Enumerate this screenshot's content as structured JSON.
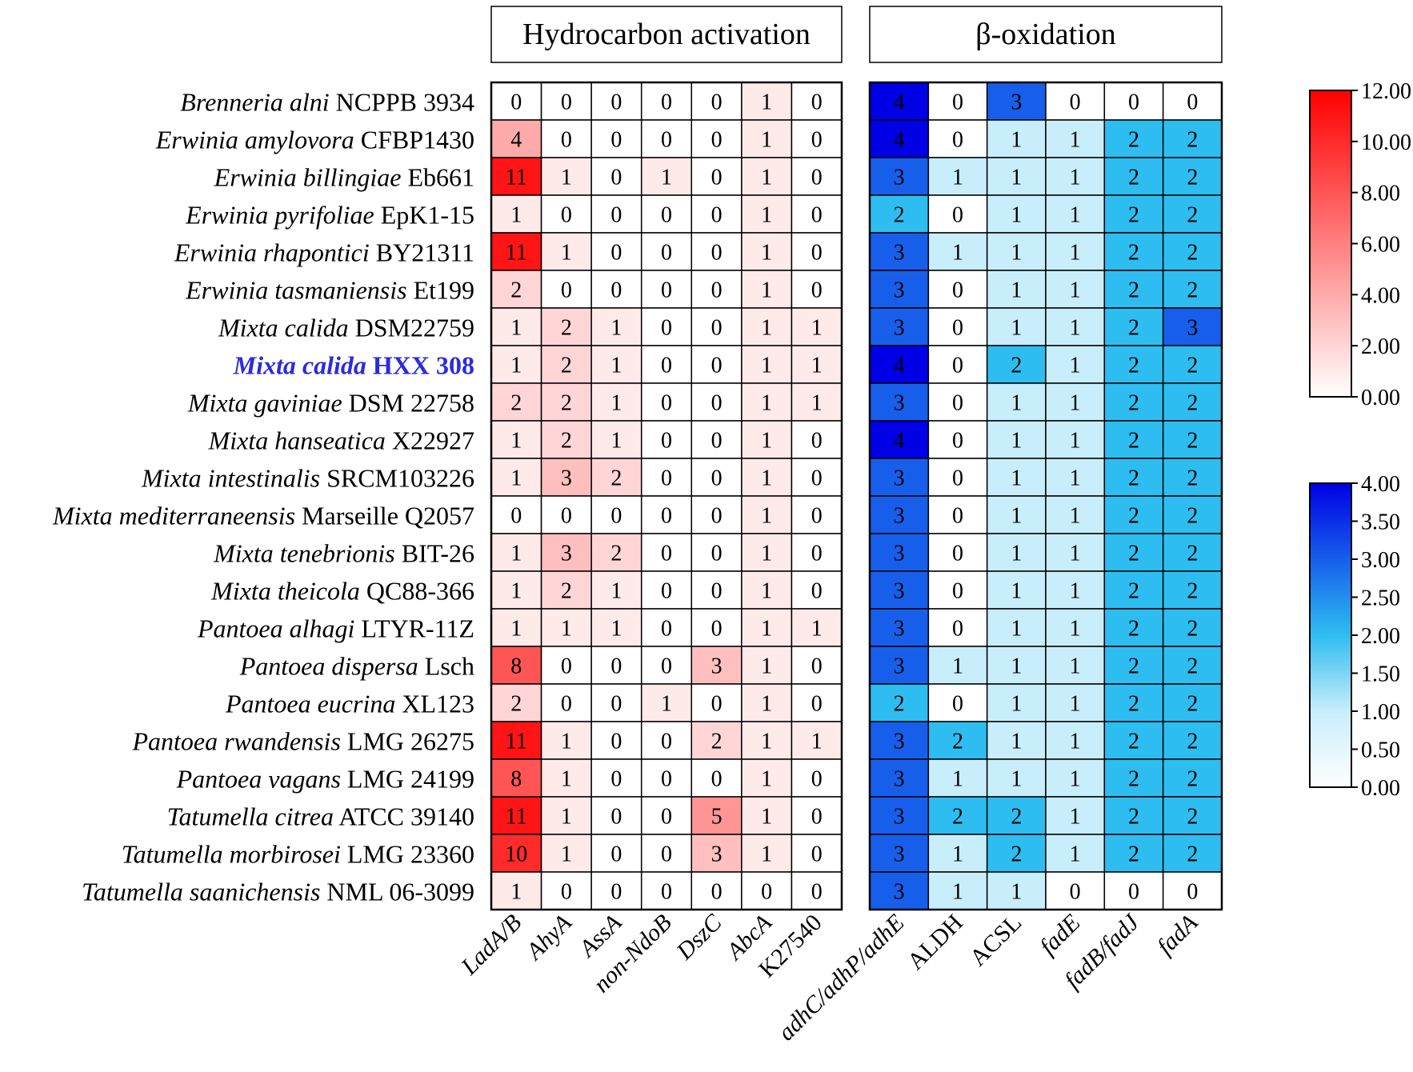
{
  "chart_data": {
    "type": "heatmap",
    "panel_titles": {
      "left": "Hydrocarbon activation",
      "right": "β-oxidation"
    },
    "rows": [
      {
        "genus": "Brenneria alni",
        "strain": "NCPPB 3934",
        "highlight": false
      },
      {
        "genus": "Erwinia amylovora",
        "strain": "CFBP1430",
        "highlight": false
      },
      {
        "genus": "Erwinia billingiae",
        "strain": "Eb661",
        "highlight": false
      },
      {
        "genus": "Erwinia pyrifoliae",
        "strain": "EpK1-15",
        "highlight": false
      },
      {
        "genus": "Erwinia rhapontici",
        "strain": "BY21311",
        "highlight": false
      },
      {
        "genus": "Erwinia tasmaniensis",
        "strain": "Et199",
        "highlight": false
      },
      {
        "genus": "Mixta calida",
        "strain": "DSM22759",
        "highlight": false
      },
      {
        "genus": "Mixta calida",
        "strain": "HXX 308",
        "highlight": true
      },
      {
        "genus": "Mixta gaviniae",
        "strain": "DSM 22758",
        "highlight": false
      },
      {
        "genus": "Mixta hanseatica",
        "strain": "X22927",
        "highlight": false
      },
      {
        "genus": "Mixta intestinalis",
        "strain": "SRCM103226",
        "highlight": false
      },
      {
        "genus": "Mixta mediterraneensis",
        "strain": "Marseille Q2057",
        "highlight": false
      },
      {
        "genus": "Mixta tenebrionis",
        "strain": "BIT-26",
        "highlight": false
      },
      {
        "genus": "Mixta theicola",
        "strain": "QC88-366",
        "highlight": false
      },
      {
        "genus": "Pantoea alhagi",
        "strain": "LTYR-11Z",
        "highlight": false
      },
      {
        "genus": "Pantoea dispersa",
        "strain": "Lsch",
        "highlight": false
      },
      {
        "genus": "Pantoea eucrina",
        "strain": "XL123",
        "highlight": false
      },
      {
        "genus": "Pantoea rwandensis",
        "strain": "LMG 26275",
        "highlight": false
      },
      {
        "genus": "Pantoea vagans",
        "strain": "LMG 24199",
        "highlight": false
      },
      {
        "genus": "Tatumella citrea",
        "strain": "ATCC 39140",
        "highlight": false
      },
      {
        "genus": "Tatumella morbirosei",
        "strain": "LMG 23360",
        "highlight": false
      },
      {
        "genus": "Tatumella saanichensis",
        "strain": "NML 06-3099",
        "highlight": false
      }
    ],
    "left_columns": [
      "LadA/B",
      "AhyA",
      "AssA",
      "non-NdoB",
      "DszC",
      "AbcA",
      "K27540"
    ],
    "right_columns": [
      "adhC/adhP/adhE",
      "ALDH",
      "ACSL",
      "fadE",
      "fadB/fadJ",
      "fadA"
    ],
    "left_values": [
      [
        0,
        0,
        0,
        0,
        0,
        1,
        0
      ],
      [
        4,
        0,
        0,
        0,
        0,
        1,
        0
      ],
      [
        11,
        1,
        0,
        1,
        0,
        1,
        0
      ],
      [
        1,
        0,
        0,
        0,
        0,
        1,
        0
      ],
      [
        11,
        1,
        0,
        0,
        0,
        1,
        0
      ],
      [
        2,
        0,
        0,
        0,
        0,
        1,
        0
      ],
      [
        1,
        2,
        1,
        0,
        0,
        1,
        1
      ],
      [
        1,
        2,
        1,
        0,
        0,
        1,
        1
      ],
      [
        2,
        2,
        1,
        0,
        0,
        1,
        1
      ],
      [
        1,
        2,
        1,
        0,
        0,
        1,
        0
      ],
      [
        1,
        3,
        2,
        0,
        0,
        1,
        0
      ],
      [
        0,
        0,
        0,
        0,
        0,
        1,
        0
      ],
      [
        1,
        3,
        2,
        0,
        0,
        1,
        0
      ],
      [
        1,
        2,
        1,
        0,
        0,
        1,
        0
      ],
      [
        1,
        1,
        1,
        0,
        0,
        1,
        1
      ],
      [
        8,
        0,
        0,
        0,
        3,
        1,
        0
      ],
      [
        2,
        0,
        0,
        1,
        0,
        1,
        0
      ],
      [
        11,
        1,
        0,
        0,
        2,
        1,
        1
      ],
      [
        8,
        1,
        0,
        0,
        0,
        1,
        0
      ],
      [
        11,
        1,
        0,
        0,
        5,
        1,
        0
      ],
      [
        10,
        1,
        0,
        0,
        3,
        1,
        0
      ],
      [
        1,
        0,
        0,
        0,
        0,
        0,
        0
      ]
    ],
    "right_values": [
      [
        4,
        0,
        3,
        0,
        0,
        0
      ],
      [
        4,
        0,
        1,
        1,
        2,
        2
      ],
      [
        3,
        1,
        1,
        1,
        2,
        2
      ],
      [
        2,
        0,
        1,
        1,
        2,
        2
      ],
      [
        3,
        1,
        1,
        1,
        2,
        2
      ],
      [
        3,
        0,
        1,
        1,
        2,
        2
      ],
      [
        3,
        0,
        1,
        1,
        2,
        3
      ],
      [
        4,
        0,
        2,
        1,
        2,
        2
      ],
      [
        3,
        0,
        1,
        1,
        2,
        2
      ],
      [
        4,
        0,
        1,
        1,
        2,
        2
      ],
      [
        3,
        0,
        1,
        1,
        2,
        2
      ],
      [
        3,
        0,
        1,
        1,
        2,
        2
      ],
      [
        3,
        0,
        1,
        1,
        2,
        2
      ],
      [
        3,
        0,
        1,
        1,
        2,
        2
      ],
      [
        3,
        0,
        1,
        1,
        2,
        2
      ],
      [
        3,
        1,
        1,
        1,
        2,
        2
      ],
      [
        2,
        0,
        1,
        1,
        2,
        2
      ],
      [
        3,
        2,
        1,
        1,
        2,
        2
      ],
      [
        3,
        1,
        1,
        1,
        2,
        2
      ],
      [
        3,
        2,
        2,
        1,
        2,
        2
      ],
      [
        3,
        1,
        2,
        1,
        2,
        2
      ],
      [
        3,
        1,
        1,
        0,
        0,
        0
      ]
    ],
    "red_scale": {
      "range": [
        0,
        12
      ],
      "ticks": [
        "0.00",
        "2.00",
        "4.00",
        "6.00",
        "8.00",
        "10.00",
        "12.00"
      ],
      "color_low": "#ffffff",
      "color_high": "#ff0000"
    },
    "blue_scale": {
      "range": [
        0,
        4
      ],
      "ticks": [
        "0.00",
        "0.50",
        "1.00",
        "1.50",
        "2.00",
        "2.50",
        "3.00",
        "3.50",
        "4.00"
      ],
      "stops": [
        "#ffffff",
        "#c8eefb",
        "#2ebdf0",
        "#0000e6"
      ]
    },
    "highlight_color": "#2b2be0"
  }
}
